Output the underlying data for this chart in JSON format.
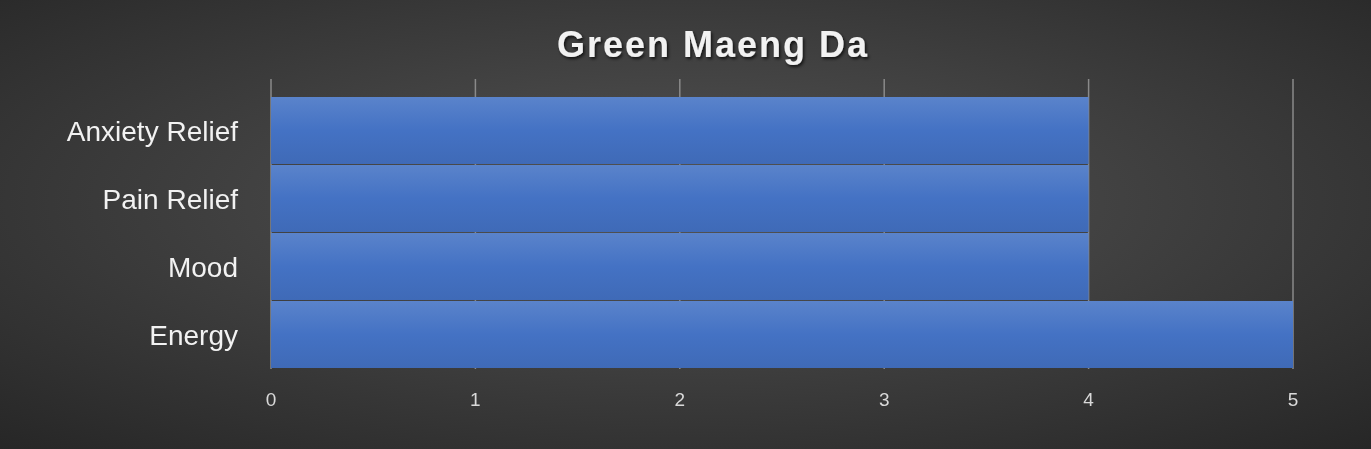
{
  "chart_data": {
    "type": "bar",
    "orientation": "horizontal",
    "title": "Green Maeng Da",
    "categories": [
      "Anxiety Relief",
      "Pain Relief",
      "Mood",
      "Energy"
    ],
    "values": [
      4,
      4,
      4,
      5
    ],
    "color": "#4472c4",
    "xlim": [
      0,
      5
    ],
    "xticks": [
      0,
      1,
      2,
      3,
      4,
      5
    ],
    "grid": "x"
  }
}
